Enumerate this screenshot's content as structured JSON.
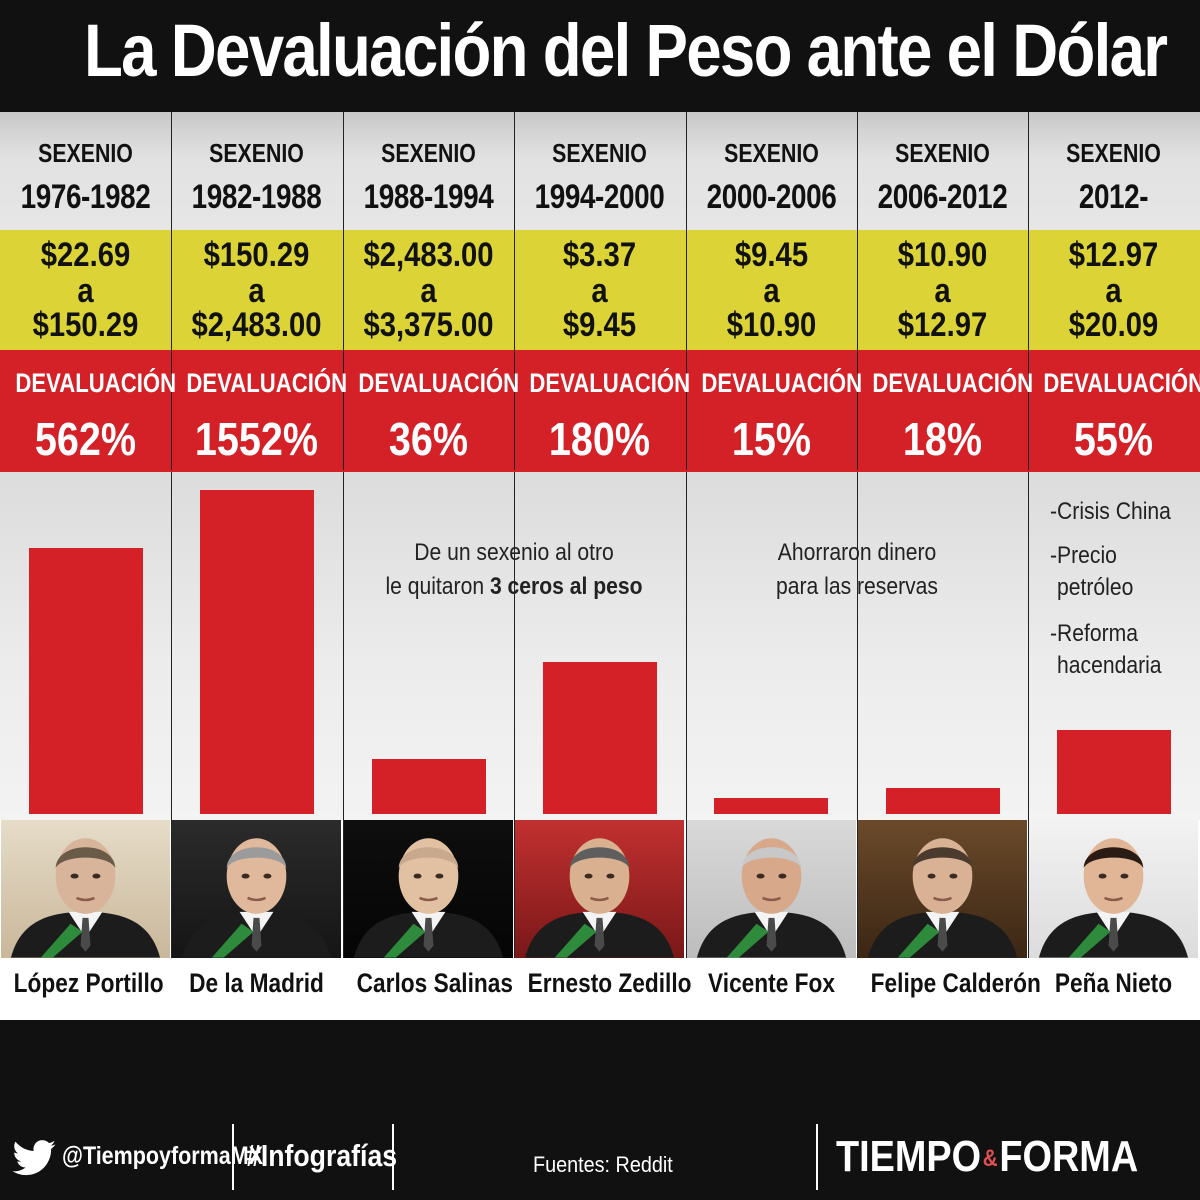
{
  "title": "La Devaluación del Peso ante el Dólar",
  "sexenio_label": "SEXENIO",
  "devaluation_label": "DEVALUACIÓN",
  "rate_connector": "a",
  "colors": {
    "title_bg": "#111111",
    "rate_band": "#dcd436",
    "devaluation_band": "#d42027",
    "bar": "#d42027",
    "footer_bg": "#111111"
  },
  "chart_data": {
    "type": "bar",
    "title": "La Devaluación del Peso ante el Dólar",
    "ylabel": "DEVALUACIÓN",
    "unit": "%",
    "categories": [
      "López Portillo",
      "De la Madrid",
      "Carlos Salinas",
      "Ernesto Zedillo",
      "Vicente Fox",
      "Felipe Calderón",
      "Peña Nieto"
    ],
    "sexenios": [
      "1976-1982",
      "1982-1988",
      "1988-1994",
      "1994-2000",
      "2000-2006",
      "2006-2012",
      "2012-"
    ],
    "rate_from": [
      "$22.69",
      "$150.29",
      "$2,483.00",
      "$3.37",
      "$9.45",
      "$10.90",
      "$12.97"
    ],
    "rate_to": [
      "$150.29",
      "$2,483.00",
      "$3,375.00",
      "$9.45",
      "$10.90",
      "$12.97",
      "$20.09"
    ],
    "values": [
      562,
      1552,
      36,
      180,
      15,
      18,
      55
    ],
    "labels": [
      "562%",
      "1552%",
      "36%",
      "180%",
      "15%",
      "18%",
      "55%"
    ],
    "bar_display_level": [
      0.82,
      1.0,
      0.17,
      0.47,
      0.05,
      0.08,
      0.26
    ],
    "annotations": {
      "salinas": {
        "line1": "De un sexenio al otro",
        "line2_prefix": "le quitaron ",
        "line2_bold": "3 ceros al peso"
      },
      "fox_calderon": {
        "line1": "Ahorraron dinero",
        "line2": "para las reservas"
      },
      "pena_nieto": [
        "-Crisis China",
        "-Precio",
        "petróleo",
        "-Reforma",
        "hacendaria"
      ]
    }
  },
  "footer": {
    "handle": "@TiempoyformaMX",
    "hashtag": "#Infografías",
    "source": "Fuentes: Reddit",
    "brand_left": "TIEMPO",
    "brand_mark": "&",
    "brand_right": "FORMA",
    "social_icon": "twitter-bird-icon"
  }
}
